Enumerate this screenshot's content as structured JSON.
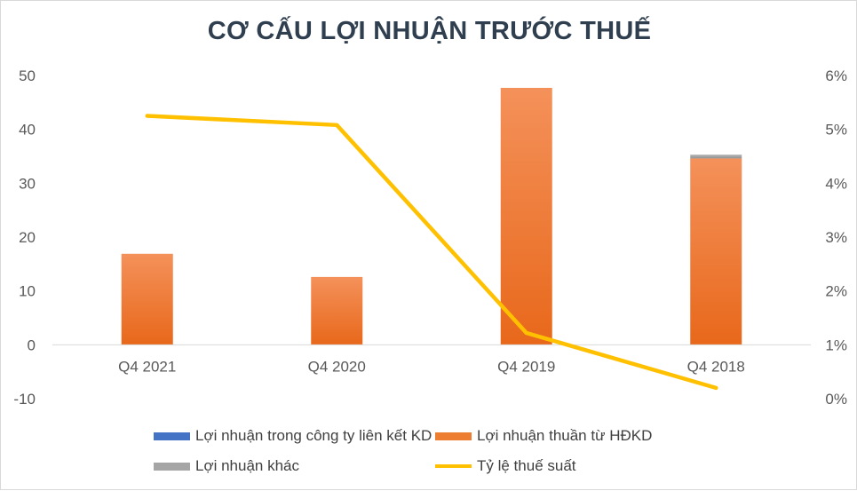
{
  "chart_data": {
    "type": "bar",
    "title": "CƠ CẤU LỢI NHUẬN TRƯỚC THUẾ",
    "categories": [
      "Q4 2021",
      "Q4 2020",
      "Q4 2019",
      "Q4 2018"
    ],
    "series": [
      {
        "name": "Lợi nhuận trong công ty liên kết KD",
        "type": "bar",
        "axis": "left",
        "values": [
          0,
          0,
          0,
          0
        ],
        "color": "#4472c4"
      },
      {
        "name": "Lợi nhuận thuần từ HĐKD",
        "type": "bar",
        "axis": "left",
        "values": [
          16.9,
          12.6,
          47.7,
          34.6
        ],
        "color": "#ed7d31"
      },
      {
        "name": "Lợi nhuận khác",
        "type": "bar",
        "axis": "left",
        "values": [
          0,
          0,
          0,
          0.7
        ],
        "color": "#a5a5a5"
      },
      {
        "name": "Tỷ lệ thuế suất",
        "type": "line",
        "axis": "right",
        "values": [
          0.0525,
          0.0508,
          0.0122,
          0.002
        ],
        "color": "#ffc000"
      }
    ],
    "ylim": [
      -10,
      50
    ],
    "y2lim": [
      0,
      0.06
    ],
    "yticks": [
      "50",
      "40",
      "30",
      "20",
      "10",
      "0",
      "-10"
    ],
    "y2ticks": [
      "6%",
      "5%",
      "4%",
      "3%",
      "2%",
      "1%",
      "0%"
    ],
    "stacked": true,
    "grid": false,
    "legend_position": "bottom"
  }
}
